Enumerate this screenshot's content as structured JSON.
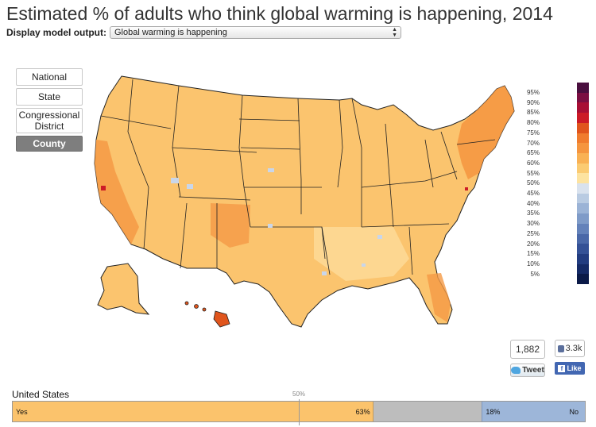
{
  "title": "Estimated % of adults who think global warming is happening, 2014",
  "model_select": {
    "label": "Display model output:",
    "selected": "Global warming is happening"
  },
  "geo_levels": {
    "national": "National",
    "state": "State",
    "congressional": "Congressional District",
    "county": "County",
    "active": "County"
  },
  "legend": {
    "items": [
      {
        "label": "95%",
        "color": "#4a0f3f"
      },
      {
        "label": "90%",
        "color": "#7b0f42"
      },
      {
        "label": "85%",
        "color": "#a80f35"
      },
      {
        "label": "80%",
        "color": "#cc1b27"
      },
      {
        "label": "75%",
        "color": "#e0551d"
      },
      {
        "label": "70%",
        "color": "#f07c2e"
      },
      {
        "label": "65%",
        "color": "#f5953f"
      },
      {
        "label": "60%",
        "color": "#f9b154"
      },
      {
        "label": "55%",
        "color": "#fbcb72"
      },
      {
        "label": "50%",
        "color": "#fde3a0"
      },
      {
        "label": "45%",
        "color": "#d9e2ee"
      },
      {
        "label": "40%",
        "color": "#b9cbe2"
      },
      {
        "label": "35%",
        "color": "#9bb3d6"
      },
      {
        "label": "30%",
        "color": "#7f9bc8"
      },
      {
        "label": "25%",
        "color": "#6482ba"
      },
      {
        "label": "20%",
        "color": "#4a68a8"
      },
      {
        "label": "15%",
        "color": "#345196"
      },
      {
        "label": "10%",
        "color": "#223c80"
      },
      {
        "label": "5%",
        "color": "#152a66"
      },
      {
        "label": "",
        "color": "#0b1a48"
      }
    ]
  },
  "social": {
    "tweet_count": "1,882",
    "tweet_label": "Tweet",
    "like_count": "3.3k",
    "like_label": "Like"
  },
  "summary": {
    "region": "United States",
    "midpoint_label": "50%",
    "yes_label": "Yes",
    "yes_pct": "63%",
    "no_pct": "18%",
    "no_label": "No",
    "yes_value": 63,
    "neutral_value": 19,
    "no_value": 18
  },
  "colors": {
    "map_fill": "#fbc46e",
    "map_dark": "#f08a35",
    "map_stroke": "#222222"
  }
}
